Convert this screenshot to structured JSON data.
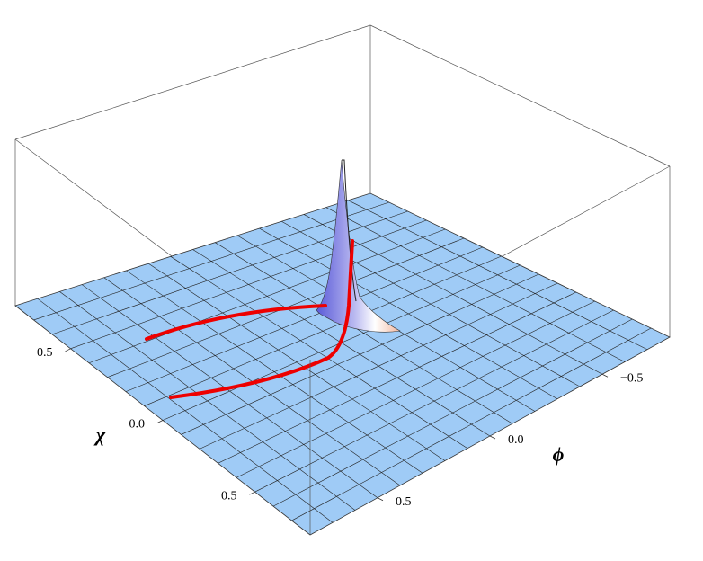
{
  "chart_data": {
    "type": "surface3d",
    "xlabel": "χ",
    "ylabel": "ϕ",
    "xlim": [
      -0.8,
      0.8
    ],
    "ylim": [
      -0.8,
      0.8
    ],
    "xticks": [
      {
        "value": -0.5,
        "label": "−0.5"
      },
      {
        "value": 0,
        "label": "0.0"
      },
      0.5
    ],
    "yticks": [
      {
        "value": -0.5,
        "label": "−0.5"
      },
      {
        "value": 0,
        "label": "0.0"
      },
      0.5
    ],
    "surface_color": "#9fcbf6",
    "curve_color": "#ee0000"
  }
}
